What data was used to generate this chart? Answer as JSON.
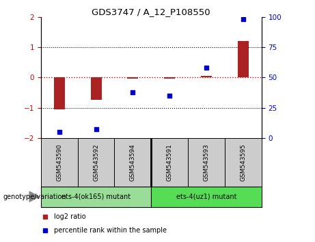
{
  "title": "GDS3747 / A_12_P108550",
  "samples": [
    "GSM543590",
    "GSM543592",
    "GSM543594",
    "GSM543591",
    "GSM543593",
    "GSM543595"
  ],
  "log2_ratio": [
    -1.05,
    -0.75,
    -0.05,
    -0.05,
    0.05,
    1.2
  ],
  "percentile_rank": [
    5,
    7,
    38,
    35,
    58,
    98
  ],
  "bar_color": "#aa2222",
  "dot_color": "#0000cc",
  "ylim_left": [
    -2,
    2
  ],
  "ylim_right": [
    0,
    100
  ],
  "y_ticks_left": [
    -2,
    -1,
    0,
    1,
    2
  ],
  "y_ticks_right": [
    0,
    25,
    50,
    75,
    100
  ],
  "groups": [
    {
      "label": "ets-4(ok165) mutant",
      "samples": [
        0,
        1,
        2
      ],
      "color": "#99dd99"
    },
    {
      "label": "ets-4(uz1) mutant",
      "samples": [
        3,
        4,
        5
      ],
      "color": "#55dd55"
    }
  ],
  "genotype_label": "genotype/variation",
  "legend_items": [
    {
      "label": "log2 ratio",
      "color": "#aa2222"
    },
    {
      "label": "percentile rank within the sample",
      "color": "#0000cc"
    }
  ],
  "bar_width": 0.3,
  "background_color": "#ffffff"
}
